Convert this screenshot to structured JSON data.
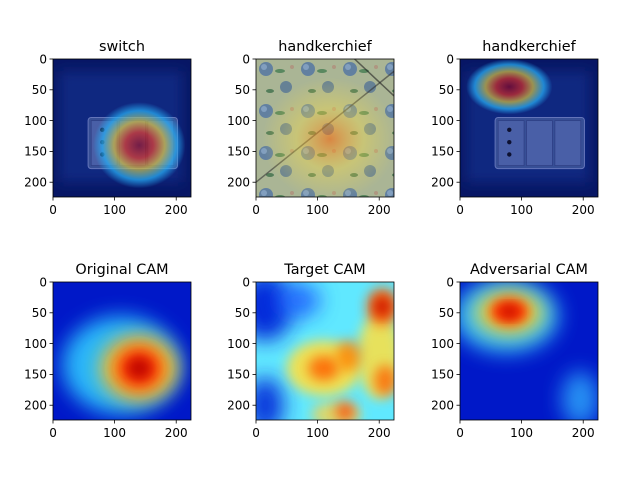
{
  "chart_data": [
    {
      "type": "heatmap",
      "panel": "top-left",
      "title": "switch",
      "content": "photo of wall light switch with CAM overlay",
      "xticks": [
        0,
        100,
        200
      ],
      "yticks": [
        0,
        50,
        100,
        150,
        200
      ],
      "xlim": [
        0,
        224
      ],
      "ylim": [
        224,
        0
      ],
      "colormap": "jet",
      "hotspots": [
        {
          "x": 140,
          "y": 140,
          "intensity": 1.0
        }
      ]
    },
    {
      "type": "heatmap",
      "panel": "top-middle",
      "title": "handkerchief",
      "content": "photo of floral handkerchief with CAM overlay",
      "xticks": [
        0,
        100,
        200
      ],
      "yticks": [
        0,
        50,
        100,
        150,
        200
      ],
      "xlim": [
        0,
        224
      ],
      "ylim": [
        224,
        0
      ],
      "colormap": "jet",
      "hotspots": [
        {
          "x": 120,
          "y": 130,
          "intensity": 0.7
        }
      ]
    },
    {
      "type": "heatmap",
      "panel": "top-right",
      "title": "handkerchief",
      "content": "photo of wall light switch with adversarial CAM overlay",
      "xticks": [
        0,
        100,
        200
      ],
      "yticks": [
        0,
        50,
        100,
        150,
        200
      ],
      "xlim": [
        0,
        224
      ],
      "ylim": [
        224,
        0
      ],
      "colormap": "jet",
      "hotspots": [
        {
          "x": 80,
          "y": 45,
          "intensity": 1.0
        }
      ]
    },
    {
      "type": "heatmap",
      "panel": "bottom-left",
      "title": "Original CAM",
      "xticks": [
        0,
        100,
        200
      ],
      "yticks": [
        0,
        50,
        100,
        150,
        200
      ],
      "xlim": [
        0,
        224
      ],
      "ylim": [
        224,
        0
      ],
      "colormap": "jet",
      "background": "#0018c8",
      "blobs": [
        {
          "x": 110,
          "y": 135,
          "rx": 95,
          "ry": 80,
          "color": "#2ec8ff",
          "opacity": 0.9
        },
        {
          "x": 140,
          "y": 140,
          "rx": 62,
          "ry": 52,
          "color": "#ffe020",
          "opacity": 0.95
        },
        {
          "x": 140,
          "y": 140,
          "rx": 40,
          "ry": 36,
          "color": "#ff2000",
          "opacity": 1.0
        },
        {
          "x": 140,
          "y": 140,
          "rx": 20,
          "ry": 18,
          "color": "#b00000",
          "opacity": 0.8
        }
      ]
    },
    {
      "type": "heatmap",
      "panel": "bottom-middle",
      "title": "Target CAM",
      "xticks": [
        0,
        100,
        200
      ],
      "yticks": [
        0,
        50,
        100,
        150,
        200
      ],
      "xlim": [
        0,
        224
      ],
      "ylim": [
        224,
        0
      ],
      "colormap": "jet",
      "background": "#60e8ff",
      "blobs": [
        {
          "x": 15,
          "y": 40,
          "rx": 45,
          "ry": 55,
          "color": "#0020d8",
          "opacity": 0.95
        },
        {
          "x": 15,
          "y": 200,
          "rx": 30,
          "ry": 45,
          "color": "#0020d8",
          "opacity": 0.9
        },
        {
          "x": 70,
          "y": 30,
          "rx": 35,
          "ry": 28,
          "color": "#1a60ff",
          "opacity": 0.85
        },
        {
          "x": 130,
          "y": 215,
          "rx": 40,
          "ry": 20,
          "color": "#ffd040",
          "opacity": 0.8
        },
        {
          "x": 110,
          "y": 140,
          "rx": 60,
          "ry": 45,
          "color": "#ffe040",
          "opacity": 0.9
        },
        {
          "x": 200,
          "y": 120,
          "rx": 35,
          "ry": 70,
          "color": "#ffe040",
          "opacity": 0.85
        },
        {
          "x": 205,
          "y": 40,
          "rx": 25,
          "ry": 30,
          "color": "#ff6000",
          "opacity": 0.95
        },
        {
          "x": 205,
          "y": 40,
          "rx": 12,
          "ry": 14,
          "color": "#c00000",
          "opacity": 0.9
        },
        {
          "x": 110,
          "y": 140,
          "rx": 25,
          "ry": 20,
          "color": "#ff6000",
          "opacity": 0.85
        },
        {
          "x": 150,
          "y": 120,
          "rx": 20,
          "ry": 25,
          "color": "#ff8000",
          "opacity": 0.8
        },
        {
          "x": 210,
          "y": 160,
          "rx": 18,
          "ry": 25,
          "color": "#ff6000",
          "opacity": 0.8
        },
        {
          "x": 145,
          "y": 210,
          "rx": 15,
          "ry": 15,
          "color": "#ff4000",
          "opacity": 0.8
        }
      ]
    },
    {
      "type": "heatmap",
      "panel": "bottom-right",
      "title": "Adversarial CAM",
      "xticks": [
        0,
        100,
        200
      ],
      "yticks": [
        0,
        50,
        100,
        150,
        200
      ],
      "xlim": [
        0,
        224
      ],
      "ylim": [
        224,
        0
      ],
      "colormap": "jet",
      "background": "#0018c8",
      "blobs": [
        {
          "x": 75,
          "y": 55,
          "rx": 85,
          "ry": 60,
          "color": "#40d8ff",
          "opacity": 0.85
        },
        {
          "x": 195,
          "y": 190,
          "rx": 30,
          "ry": 45,
          "color": "#30b0ff",
          "opacity": 0.8
        },
        {
          "x": 80,
          "y": 50,
          "rx": 55,
          "ry": 35,
          "color": "#ffe020",
          "opacity": 0.9
        },
        {
          "x": 80,
          "y": 48,
          "rx": 32,
          "ry": 22,
          "color": "#ff3000",
          "opacity": 1.0
        },
        {
          "x": 80,
          "y": 48,
          "rx": 14,
          "ry": 10,
          "color": "#b00000",
          "opacity": 0.8
        }
      ]
    }
  ]
}
